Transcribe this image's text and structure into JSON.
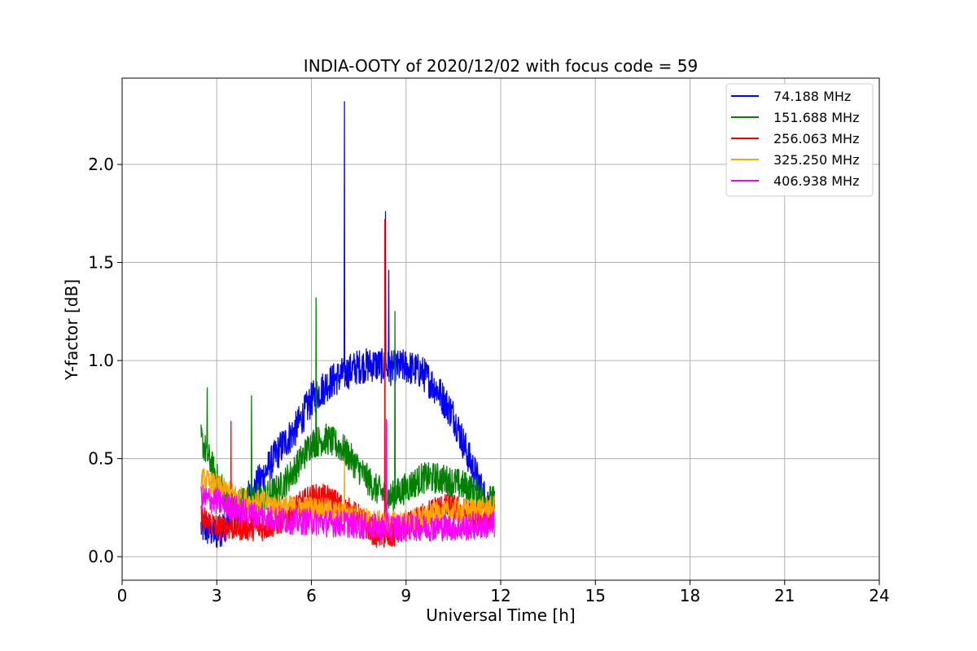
{
  "chart_data": {
    "type": "line",
    "title": "INDIA-OOTY of 2020/12/02 with focus code = 59",
    "xlabel": "Universal Time [h]",
    "ylabel": "Y-factor [dB]",
    "xlim": [
      0,
      24
    ],
    "ylim": [
      -0.12,
      2.44
    ],
    "xticks": [
      0,
      3,
      6,
      9,
      12,
      15,
      18,
      21,
      24
    ],
    "yticks": [
      0.0,
      0.5,
      1.0,
      1.5,
      2.0
    ],
    "xtick_labels": [
      "0",
      "3",
      "6",
      "9",
      "12",
      "15",
      "18",
      "21",
      "24"
    ],
    "ytick_labels": [
      "0.0",
      "0.5",
      "1.0",
      "1.5",
      "2.0"
    ],
    "grid": true,
    "legend_position": "top-right",
    "series": [
      {
        "name": "  74.188 MHz",
        "color": "#0000ff",
        "x": [
          2.5,
          3.0,
          3.5,
          4.0,
          4.5,
          5.0,
          5.5,
          6.0,
          6.5,
          7.0,
          7.5,
          8.0,
          8.5,
          9.0,
          9.5,
          10.0,
          10.5,
          11.0,
          11.5,
          11.8
        ],
        "y": [
          0.15,
          0.12,
          0.2,
          0.3,
          0.42,
          0.55,
          0.65,
          0.8,
          0.88,
          0.93,
          0.97,
          0.98,
          0.96,
          0.97,
          0.94,
          0.85,
          0.72,
          0.5,
          0.3,
          0.25
        ],
        "spikes": [
          {
            "x": 7.05,
            "y": 2.32
          },
          {
            "x": 8.35,
            "y": 1.76
          },
          {
            "x": 8.45,
            "y": 1.46
          }
        ]
      },
      {
        "name": "151.688 MHz",
        "color": "#008000",
        "x": [
          2.5,
          3.0,
          3.5,
          4.0,
          4.5,
          5.0,
          5.5,
          6.0,
          6.5,
          7.0,
          7.5,
          8.0,
          8.5,
          9.0,
          9.5,
          10.0,
          10.5,
          11.0,
          11.5,
          11.8
        ],
        "y": [
          0.6,
          0.4,
          0.25,
          0.3,
          0.3,
          0.35,
          0.45,
          0.58,
          0.6,
          0.55,
          0.45,
          0.35,
          0.3,
          0.35,
          0.4,
          0.4,
          0.38,
          0.35,
          0.3,
          0.28
        ],
        "spikes": [
          {
            "x": 6.15,
            "y": 1.32
          },
          {
            "x": 8.65,
            "y": 1.25
          },
          {
            "x": 2.7,
            "y": 0.86
          },
          {
            "x": 4.1,
            "y": 0.82
          }
        ]
      },
      {
        "name": "256.063 MHz",
        "color": "#ff0000",
        "x": [
          2.5,
          3.0,
          3.5,
          4.0,
          4.5,
          5.0,
          5.5,
          6.0,
          6.5,
          7.0,
          7.5,
          8.0,
          8.5,
          9.0,
          9.5,
          10.0,
          10.5,
          11.0,
          11.5,
          11.8
        ],
        "y": [
          0.2,
          0.15,
          0.15,
          0.15,
          0.15,
          0.18,
          0.25,
          0.3,
          0.3,
          0.25,
          0.2,
          0.12,
          0.1,
          0.15,
          0.2,
          0.25,
          0.25,
          0.22,
          0.2,
          0.2
        ],
        "spikes": [
          {
            "x": 8.33,
            "y": 1.72
          },
          {
            "x": 3.45,
            "y": 0.69
          }
        ]
      },
      {
        "name": "325.250 MHz",
        "color": "#ffa500",
        "x": [
          2.5,
          3.0,
          3.5,
          4.0,
          4.5,
          5.0,
          5.5,
          6.0,
          6.5,
          7.0,
          7.5,
          8.0,
          8.5,
          9.0,
          9.5,
          10.0,
          10.5,
          11.0,
          11.5,
          11.8
        ],
        "y": [
          0.4,
          0.36,
          0.32,
          0.28,
          0.28,
          0.26,
          0.25,
          0.25,
          0.24,
          0.22,
          0.2,
          0.18,
          0.17,
          0.18,
          0.2,
          0.22,
          0.23,
          0.24,
          0.25,
          0.25
        ],
        "spikes": [
          {
            "x": 7.05,
            "y": 0.5
          }
        ]
      },
      {
        "name": "406.938 MHz",
        "color": "#ff00ff",
        "x": [
          2.5,
          3.0,
          3.5,
          4.0,
          4.5,
          5.0,
          5.5,
          6.0,
          6.5,
          7.0,
          7.5,
          8.0,
          8.5,
          9.0,
          9.5,
          10.0,
          10.5,
          11.0,
          11.5,
          11.8
        ],
        "y": [
          0.3,
          0.28,
          0.25,
          0.22,
          0.2,
          0.19,
          0.18,
          0.18,
          0.17,
          0.17,
          0.16,
          0.15,
          0.15,
          0.15,
          0.15,
          0.15,
          0.15,
          0.15,
          0.16,
          0.16
        ],
        "spikes": [
          {
            "x": 8.38,
            "y": 0.7
          }
        ]
      }
    ]
  }
}
